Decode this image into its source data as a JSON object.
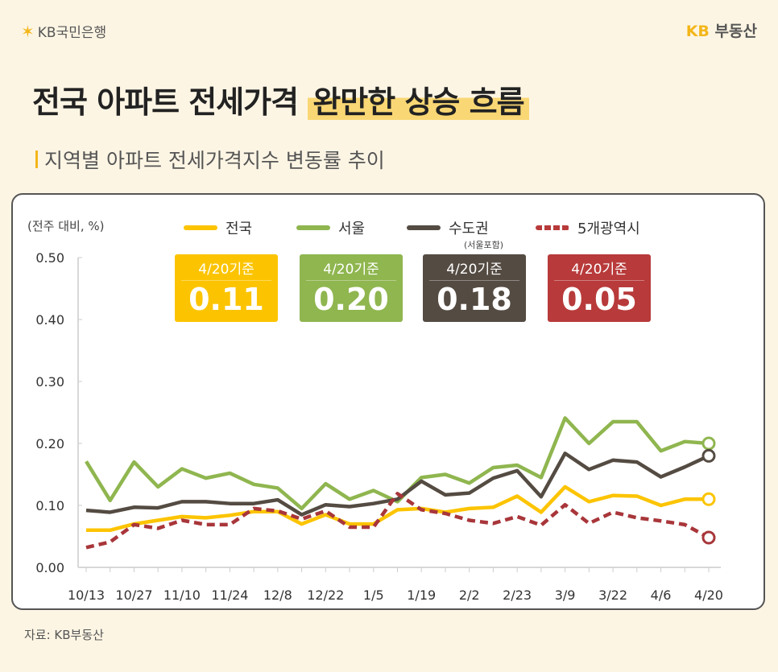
{
  "header": {
    "logo_left": "KB국민은행",
    "logo_right_kb": "KB",
    "logo_right_text": "부동산"
  },
  "title": {
    "plain": "전국 아파트 전세가격",
    "highlight": "완만한 상승 흐름"
  },
  "subtitle": "지역별 아파트 전세가격지수 변동률 추이",
  "source": "자료: KB부동산",
  "legend_note": "(서울포함)",
  "value_boxes": [
    {
      "date": "4/20기준",
      "value": "0.11",
      "color": "#fcc400"
    },
    {
      "date": "4/20기준",
      "value": "0.20",
      "color": "#8fb64f"
    },
    {
      "date": "4/20기준",
      "value": "0.18",
      "color": "#544b42"
    },
    {
      "date": "4/20기준",
      "value": "0.05",
      "color": "#b83a3a"
    }
  ],
  "chart_data": {
    "type": "line",
    "ylabel": "(전주 대비, %)",
    "ylim": [
      0,
      0.5
    ],
    "yticks": [
      "0.00",
      "0.10",
      "0.20",
      "0.30",
      "0.40",
      "0.50"
    ],
    "grid": false,
    "legend_placement": "top",
    "categories": [
      "10/13",
      "",
      "10/27",
      "",
      "11/10",
      "",
      "11/24",
      "",
      "12/8",
      "",
      "12/22",
      "",
      "1/5",
      "",
      "1/19",
      "",
      "2/2",
      "",
      "2/23",
      "",
      "3/9",
      "",
      "3/22",
      "",
      "4/6",
      "",
      "4/20"
    ],
    "series": [
      {
        "name": "전국",
        "color": "#fcc400",
        "dashed": false,
        "values": [
          0.06,
          0.06,
          0.07,
          0.076,
          0.082,
          0.08,
          0.084,
          0.09,
          0.09,
          0.07,
          0.085,
          0.07,
          0.07,
          0.093,
          0.095,
          0.089,
          0.095,
          0.097,
          0.115,
          0.089,
          0.13,
          0.106,
          0.116,
          0.115,
          0.1,
          0.11,
          0.11
        ]
      },
      {
        "name": "서울",
        "color": "#8fb64f",
        "dashed": false,
        "values": [
          0.171,
          0.108,
          0.17,
          0.13,
          0.159,
          0.144,
          0.152,
          0.134,
          0.128,
          0.095,
          0.135,
          0.11,
          0.124,
          0.106,
          0.145,
          0.15,
          0.136,
          0.161,
          0.165,
          0.145,
          0.241,
          0.2,
          0.235,
          0.235,
          0.188,
          0.203,
          0.2
        ]
      },
      {
        "name": "수도권",
        "color": "#544b42",
        "dashed": false,
        "values": [
          0.092,
          0.089,
          0.097,
          0.096,
          0.106,
          0.106,
          0.103,
          0.103,
          0.109,
          0.085,
          0.101,
          0.098,
          0.103,
          0.11,
          0.139,
          0.117,
          0.12,
          0.144,
          0.156,
          0.114,
          0.184,
          0.158,
          0.173,
          0.17,
          0.146,
          0.162,
          0.18
        ]
      },
      {
        "name": "5개광역시",
        "color": "#a8363a",
        "dashed": true,
        "values": [
          0.032,
          0.041,
          0.069,
          0.063,
          0.076,
          0.069,
          0.069,
          0.095,
          0.091,
          0.078,
          0.091,
          0.065,
          0.065,
          0.119,
          0.093,
          0.087,
          0.076,
          0.071,
          0.082,
          0.068,
          0.101,
          0.071,
          0.089,
          0.08,
          0.075,
          0.069,
          0.048
        ]
      }
    ]
  }
}
